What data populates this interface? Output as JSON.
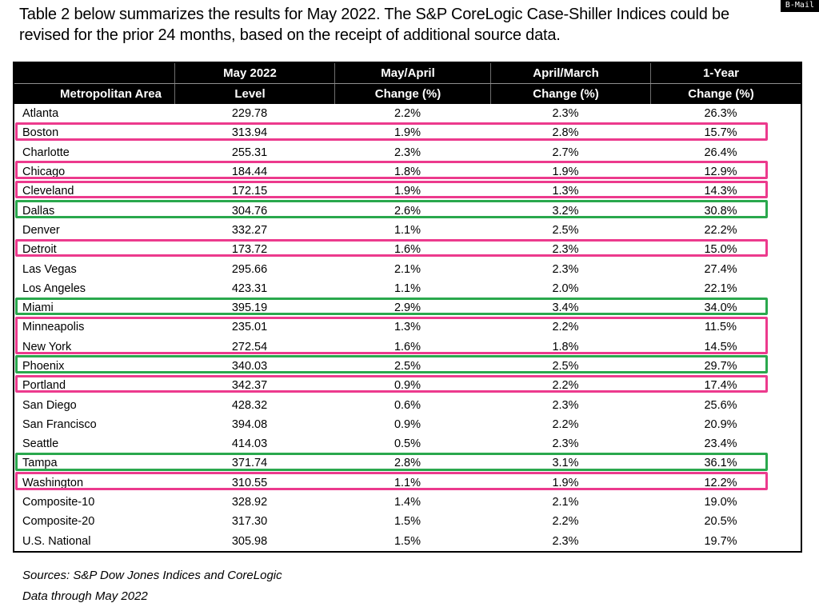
{
  "badge": {
    "label": "B-Mail"
  },
  "intro": {
    "line1": "Table 2 below summarizes the results for May 2022. The S&P CoreLogic Case-Shiller Indices could be",
    "line2": "revised for the prior 24 months, based on the receipt of additional source data."
  },
  "table": {
    "header": {
      "row1": [
        "",
        "May 2022",
        "May/April",
        "April/March",
        "1-Year"
      ],
      "row2": [
        "Metropolitan Area",
        "Level",
        "Change (%)",
        "Change (%)",
        "Change (%)"
      ]
    },
    "rows": [
      {
        "area": "Atlanta",
        "level": "229.78",
        "mom": "2.2%",
        "prev": "2.3%",
        "yoy": "26.3%"
      },
      {
        "area": "Boston",
        "level": "313.94",
        "mom": "1.9%",
        "prev": "2.8%",
        "yoy": "15.7%"
      },
      {
        "area": "Charlotte",
        "level": "255.31",
        "mom": "2.3%",
        "prev": "2.7%",
        "yoy": "26.4%"
      },
      {
        "area": "Chicago",
        "level": "184.44",
        "mom": "1.8%",
        "prev": "1.9%",
        "yoy": "12.9%"
      },
      {
        "area": "Cleveland",
        "level": "172.15",
        "mom": "1.9%",
        "prev": "1.3%",
        "yoy": "14.3%"
      },
      {
        "area": "Dallas",
        "level": "304.76",
        "mom": "2.6%",
        "prev": "3.2%",
        "yoy": "30.8%"
      },
      {
        "area": "Denver",
        "level": "332.27",
        "mom": "1.1%",
        "prev": "2.5%",
        "yoy": "22.2%"
      },
      {
        "area": "Detroit",
        "level": "173.72",
        "mom": "1.6%",
        "prev": "2.3%",
        "yoy": "15.0%"
      },
      {
        "area": "Las Vegas",
        "level": "295.66",
        "mom": "2.1%",
        "prev": "2.3%",
        "yoy": "27.4%"
      },
      {
        "area": "Los Angeles",
        "level": "423.31",
        "mom": "1.1%",
        "prev": "2.0%",
        "yoy": "22.1%"
      },
      {
        "area": "Miami",
        "level": "395.19",
        "mom": "2.9%",
        "prev": "3.4%",
        "yoy": "34.0%"
      },
      {
        "area": "Minneapolis",
        "level": "235.01",
        "mom": "1.3%",
        "prev": "2.2%",
        "yoy": "11.5%"
      },
      {
        "area": "New York",
        "level": "272.54",
        "mom": "1.6%",
        "prev": "1.8%",
        "yoy": "14.5%"
      },
      {
        "area": "Phoenix",
        "level": "340.03",
        "mom": "2.5%",
        "prev": "2.5%",
        "yoy": "29.7%"
      },
      {
        "area": "Portland",
        "level": "342.37",
        "mom": "0.9%",
        "prev": "2.2%",
        "yoy": "17.4%"
      },
      {
        "area": "San Diego",
        "level": "428.32",
        "mom": "0.6%",
        "prev": "2.3%",
        "yoy": "25.6%"
      },
      {
        "area": "San Francisco",
        "level": "394.08",
        "mom": "0.9%",
        "prev": "2.2%",
        "yoy": "20.9%"
      },
      {
        "area": "Seattle",
        "level": "414.03",
        "mom": "0.5%",
        "prev": "2.3%",
        "yoy": "23.4%"
      },
      {
        "area": "Tampa",
        "level": "371.74",
        "mom": "2.8%",
        "prev": "3.1%",
        "yoy": "36.1%"
      },
      {
        "area": "Washington",
        "level": "310.55",
        "mom": "1.1%",
        "prev": "1.9%",
        "yoy": "12.2%"
      },
      {
        "area": "Composite-10",
        "level": "328.92",
        "mom": "1.4%",
        "prev": "2.1%",
        "yoy": "19.0%"
      },
      {
        "area": "Composite-20",
        "level": "317.30",
        "mom": "1.5%",
        "prev": "2.2%",
        "yoy": "20.5%"
      },
      {
        "area": "U.S. National",
        "level": "305.98",
        "mom": "1.5%",
        "prev": "2.3%",
        "yoy": "19.7%"
      }
    ],
    "highlights": [
      {
        "row": 1,
        "span": 1,
        "color": "pink"
      },
      {
        "row": 3,
        "span": 1,
        "color": "pink"
      },
      {
        "row": 4,
        "span": 1,
        "color": "pink"
      },
      {
        "row": 5,
        "span": 1,
        "color": "green"
      },
      {
        "row": 7,
        "span": 1,
        "color": "pink"
      },
      {
        "row": 10,
        "span": 1,
        "color": "green"
      },
      {
        "row": 11,
        "span": 2,
        "color": "pink"
      },
      {
        "row": 13,
        "span": 1,
        "color": "green"
      },
      {
        "row": 14,
        "span": 1,
        "color": "pink"
      },
      {
        "row": 18,
        "span": 1,
        "color": "green"
      },
      {
        "row": 19,
        "span": 1,
        "color": "pink"
      }
    ],
    "highlight_colors": {
      "pink": "#EC3A8D",
      "green": "#2AA84D"
    }
  },
  "footer": {
    "sources": "Sources: S&P Dow Jones Indices and CoreLogic",
    "data_through": "Data through May 2022"
  }
}
